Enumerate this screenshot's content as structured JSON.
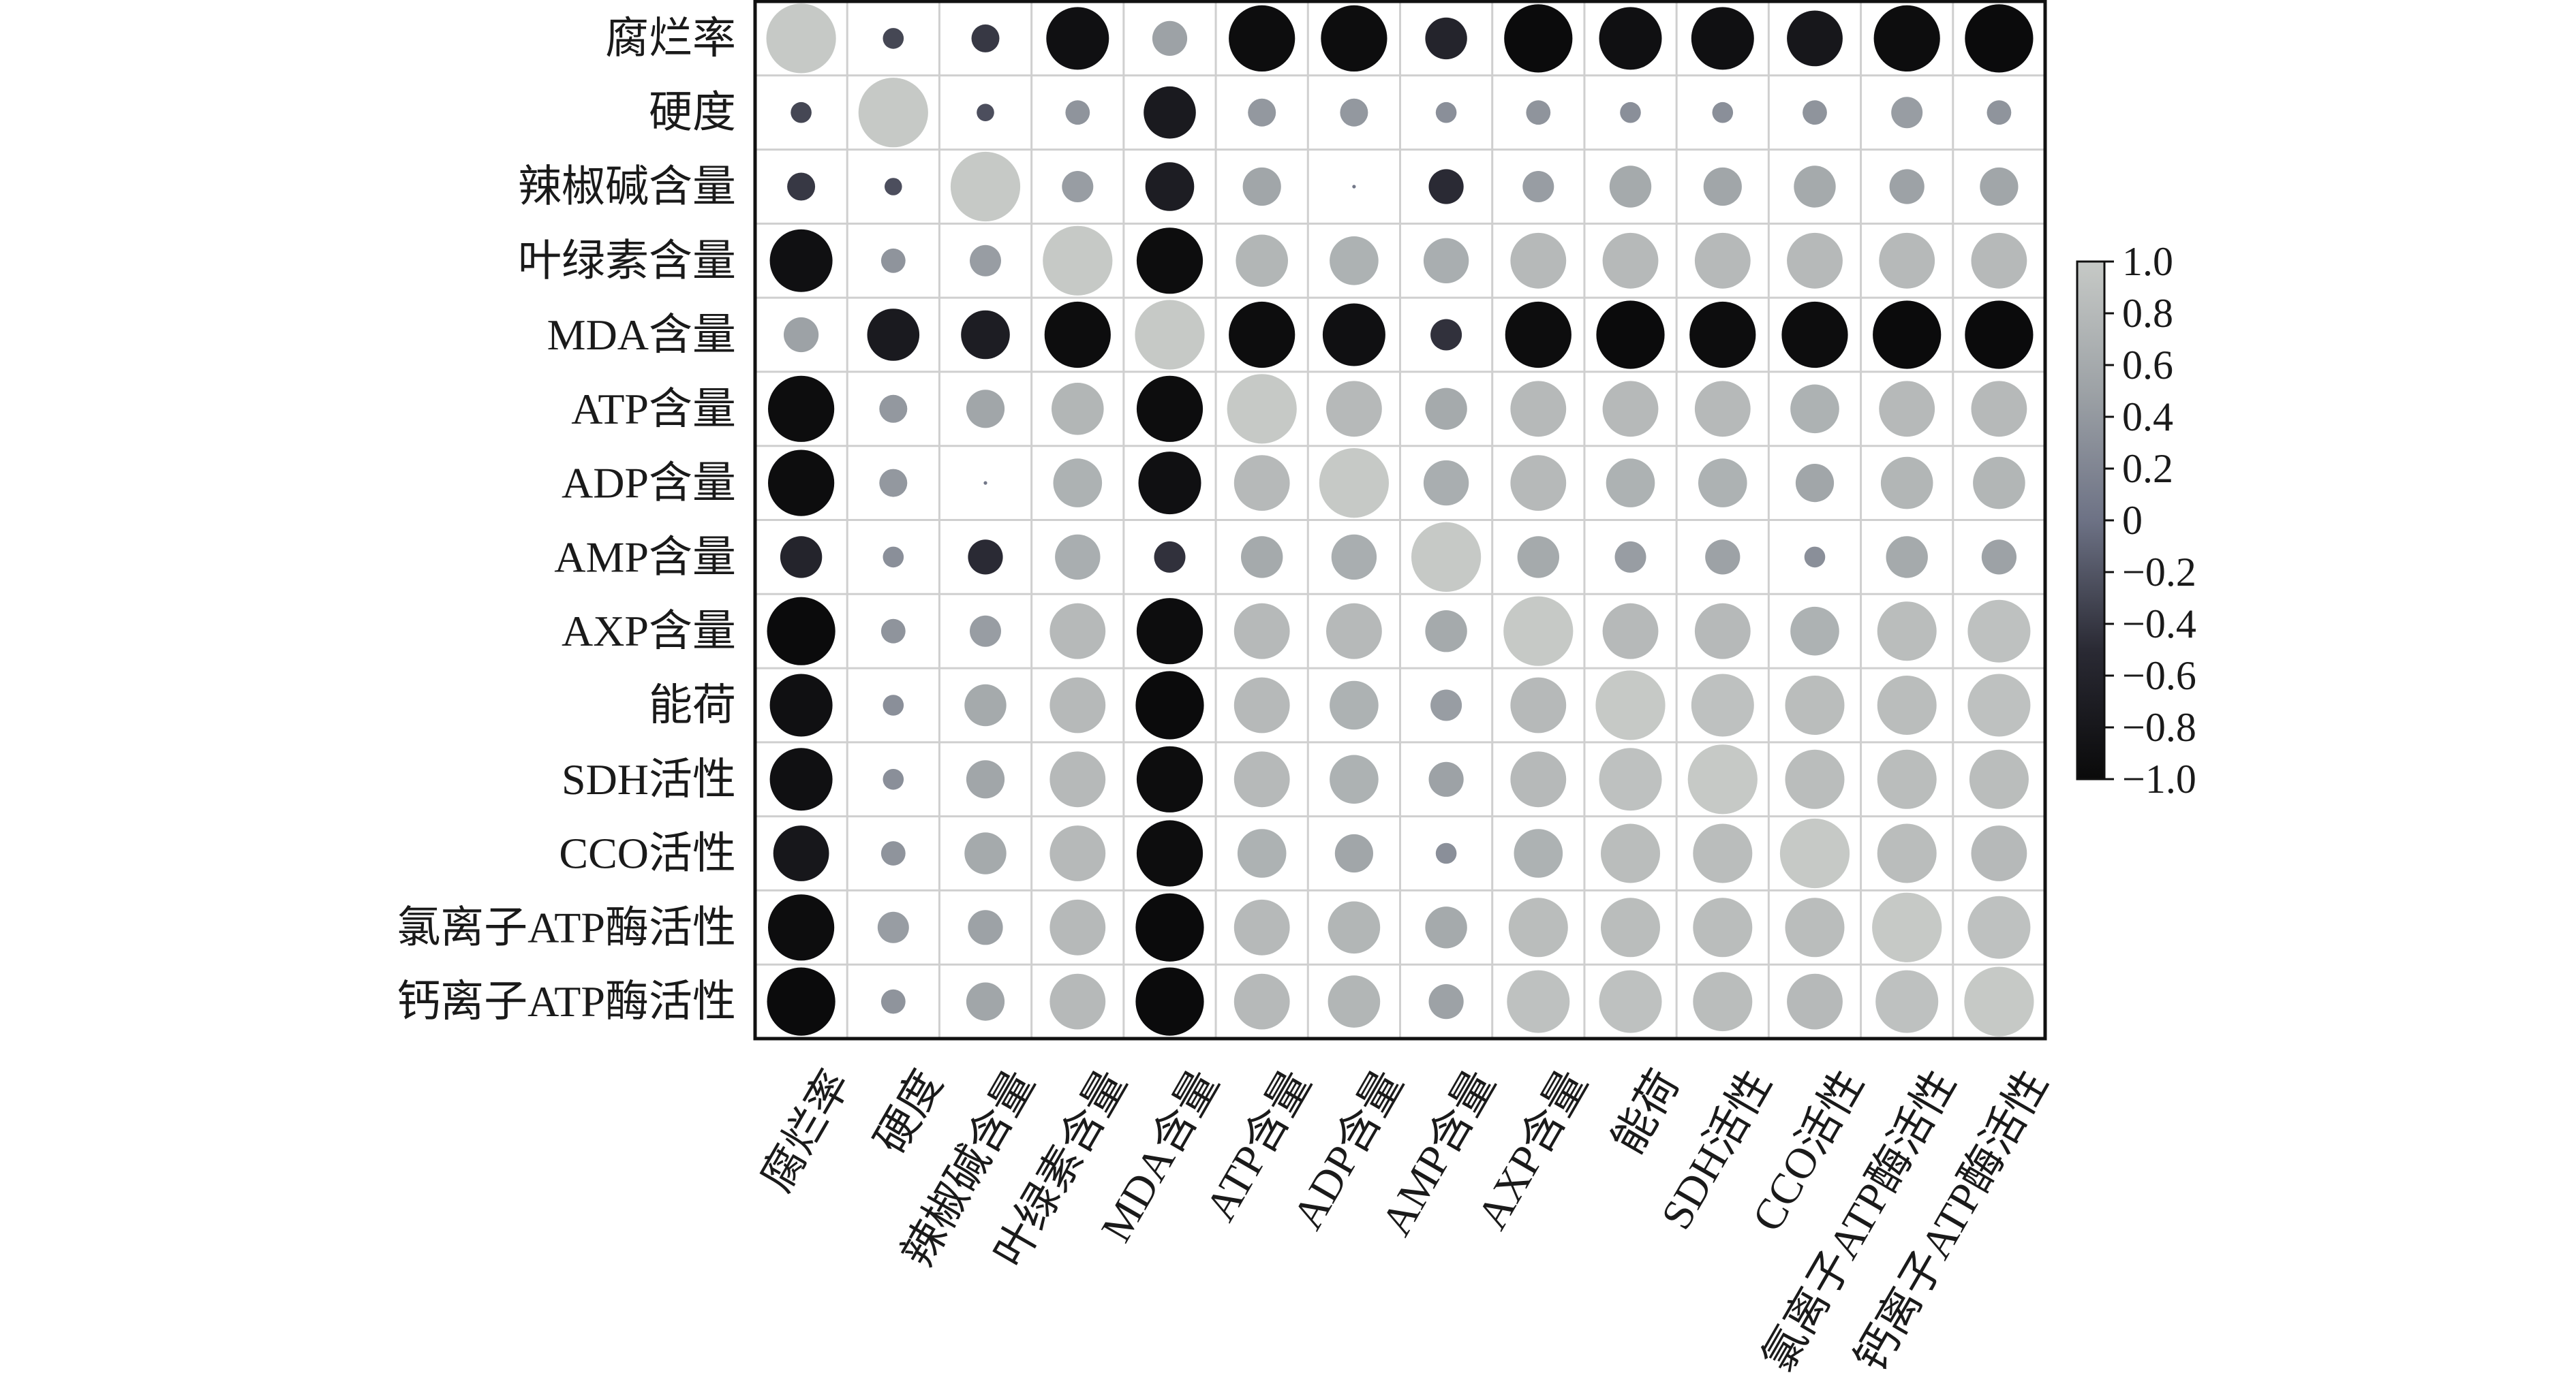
{
  "chart_data": {
    "type": "heatmap",
    "subtype": "correlation-circle-matrix",
    "title": "",
    "labels": [
      "腐烂率",
      "硬度",
      "辣椒碱含量",
      "叶绿素含量",
      "MDA含量",
      "ATP含量",
      "ADP含量",
      "AMP含量",
      "AXP含量",
      "能荷",
      "SDH活性",
      "CCO活性",
      "氯离子ATP酶活性",
      "钙离子ATP酶活性"
    ],
    "matrix": [
      [
        1.0,
        -0.3,
        -0.4,
        -0.9,
        0.5,
        -0.95,
        -0.95,
        -0.6,
        -0.98,
        -0.9,
        -0.9,
        -0.8,
        -0.95,
        -0.98
      ],
      [
        -0.3,
        1.0,
        -0.25,
        0.35,
        -0.75,
        0.4,
        0.4,
        0.3,
        0.35,
        0.3,
        0.3,
        0.35,
        0.45,
        0.35
      ],
      [
        -0.4,
        -0.25,
        1.0,
        0.45,
        -0.7,
        0.55,
        0.05,
        -0.5,
        0.45,
        0.6,
        0.55,
        0.6,
        0.5,
        0.55
      ],
      [
        -0.9,
        0.35,
        0.45,
        1.0,
        -0.95,
        0.75,
        0.7,
        0.65,
        0.8,
        0.8,
        0.8,
        0.8,
        0.8,
        0.8
      ],
      [
        0.5,
        -0.75,
        -0.7,
        -0.95,
        1.0,
        -0.95,
        -0.9,
        -0.45,
        -0.95,
        -0.98,
        -0.95,
        -0.95,
        -0.98,
        -0.98
      ],
      [
        -0.95,
        0.4,
        0.55,
        0.75,
        -0.95,
        1.0,
        0.8,
        0.6,
        0.8,
        0.8,
        0.8,
        0.7,
        0.8,
        0.8
      ],
      [
        -0.95,
        0.4,
        0.05,
        0.7,
        -0.9,
        0.8,
        1.0,
        0.65,
        0.8,
        0.7,
        0.7,
        0.55,
        0.75,
        0.75
      ],
      [
        -0.6,
        0.3,
        -0.5,
        0.65,
        -0.45,
        0.6,
        0.65,
        1.0,
        0.6,
        0.45,
        0.5,
        0.3,
        0.6,
        0.5
      ],
      [
        -0.98,
        0.35,
        0.45,
        0.8,
        -0.95,
        0.8,
        0.8,
        0.6,
        1.0,
        0.8,
        0.8,
        0.7,
        0.85,
        0.9
      ],
      [
        -0.9,
        0.3,
        0.6,
        0.8,
        -0.98,
        0.8,
        0.7,
        0.45,
        0.8,
        1.0,
        0.9,
        0.85,
        0.85,
        0.9
      ],
      [
        -0.9,
        0.3,
        0.55,
        0.8,
        -0.95,
        0.8,
        0.7,
        0.5,
        0.8,
        0.9,
        1.0,
        0.85,
        0.85,
        0.85
      ],
      [
        -0.8,
        0.35,
        0.6,
        0.8,
        -0.95,
        0.7,
        0.55,
        0.3,
        0.7,
        0.85,
        0.85,
        1.0,
        0.85,
        0.8
      ],
      [
        -0.95,
        0.45,
        0.5,
        0.8,
        -0.98,
        0.8,
        0.75,
        0.6,
        0.85,
        0.85,
        0.85,
        0.85,
        1.0,
        0.9
      ],
      [
        -0.98,
        0.35,
        0.55,
        0.8,
        -0.98,
        0.8,
        0.75,
        0.5,
        0.9,
        0.9,
        0.85,
        0.8,
        0.9,
        1.0
      ]
    ],
    "value_range": [
      -1.0,
      1.0
    ],
    "colorbar": {
      "ticks": [
        1.0,
        0.8,
        0.6,
        0.4,
        0.2,
        0,
        -0.2,
        -0.4,
        -0.6,
        -0.8,
        -1.0
      ],
      "tick_labels": [
        "1.0",
        "0.8",
        "0.6",
        "0.4",
        "0.2",
        "0",
        "−0.2",
        "−0.4",
        "−0.6",
        "−0.8",
        "−1.0"
      ],
      "placement": "right",
      "color_low": "#0a0a0a",
      "color_mid": "#6d7285",
      "color_high": "#c6c9c6"
    },
    "grid": true,
    "x_tick_rotation_deg": -60
  }
}
